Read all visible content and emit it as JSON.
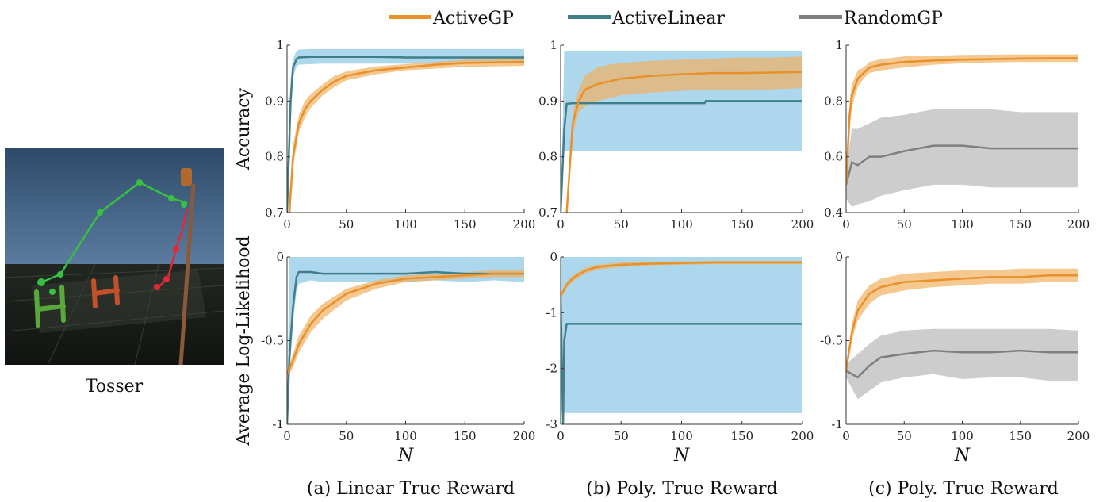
{
  "image_caption": "Tosser",
  "legend": {
    "items": [
      {
        "label": "ActiveGP",
        "color": "#e8912b"
      },
      {
        "label": "ActiveLinear",
        "color": "#3f7f8a"
      },
      {
        "label": "RandomGP",
        "color": "#7f7f7f"
      }
    ]
  },
  "colors": {
    "ActiveGP": "#e8912b",
    "ActiveLinear": "#3f7f8a",
    "RandomGP": "#7f7f7f",
    "ActiveGP_band": "#f0b060",
    "ActiveLinear_band": "#9fd0ea",
    "RandomGP_band": "#c4c4c4"
  },
  "chart_data": [
    {
      "id": "a-top",
      "type": "line",
      "xlabel": "",
      "ylabel": "Accuracy",
      "xlim": [
        0,
        200
      ],
      "ylim": [
        0.7,
        1
      ],
      "xticks": [
        "0",
        "50",
        "100",
        "150",
        "200"
      ],
      "yticks": [
        {
          "v": 0.7,
          "t": "0.7"
        },
        {
          "v": 0.8,
          "t": "0.8"
        },
        {
          "v": 0.9,
          "t": "0.9"
        },
        {
          "v": 1,
          "t": "1"
        }
      ],
      "series": [
        {
          "name": "ActiveLinear",
          "x": [
            0,
            3,
            5,
            8,
            10,
            20,
            30,
            50,
            75,
            100,
            125,
            150,
            175,
            200
          ],
          "y": [
            0.7,
            0.9,
            0.96,
            0.975,
            0.978,
            0.979,
            0.979,
            0.979,
            0.979,
            0.978,
            0.978,
            0.978,
            0.978,
            0.978
          ],
          "lo": [
            0.7,
            0.86,
            0.94,
            0.962,
            0.965,
            0.966,
            0.967,
            0.967,
            0.967,
            0.967,
            0.967,
            0.967,
            0.967,
            0.967
          ],
          "hi": [
            0.7,
            0.94,
            0.975,
            0.99,
            0.992,
            0.993,
            0.993,
            0.993,
            0.993,
            0.993,
            0.993,
            0.993,
            0.993,
            0.993
          ]
        },
        {
          "name": "ActiveGP",
          "x": [
            2,
            5,
            10,
            15,
            20,
            30,
            40,
            50,
            75,
            100,
            125,
            150,
            175,
            200
          ],
          "y": [
            0.7,
            0.8,
            0.86,
            0.885,
            0.9,
            0.92,
            0.935,
            0.945,
            0.955,
            0.96,
            0.965,
            0.968,
            0.969,
            0.97
          ],
          "lo": [
            0.7,
            0.78,
            0.845,
            0.87,
            0.888,
            0.91,
            0.925,
            0.937,
            0.948,
            0.955,
            0.958,
            0.961,
            0.962,
            0.963
          ],
          "hi": [
            0.7,
            0.82,
            0.875,
            0.9,
            0.912,
            0.93,
            0.945,
            0.953,
            0.962,
            0.966,
            0.97,
            0.974,
            0.976,
            0.977
          ]
        }
      ]
    },
    {
      "id": "b-top",
      "type": "line",
      "xlabel": "",
      "ylabel": "",
      "xlim": [
        0,
        200
      ],
      "ylim": [
        0.7,
        1
      ],
      "xticks": [
        "0",
        "50",
        "100",
        "150",
        "200"
      ],
      "yticks": [
        {
          "v": 0.7,
          "t": "0.7"
        },
        {
          "v": 0.8,
          "t": "0.8"
        },
        {
          "v": 0.9,
          "t": "0.9"
        },
        {
          "v": 1,
          "t": "1"
        }
      ],
      "series": [
        {
          "name": "ActiveLinear",
          "x": [
            0,
            3,
            5,
            10,
            20,
            50,
            100,
            119,
            120,
            150,
            200
          ],
          "y": [
            0.7,
            0.85,
            0.895,
            0.896,
            0.896,
            0.896,
            0.896,
            0.896,
            0.9,
            0.9,
            0.9
          ],
          "lo": [
            0.7,
            0.81,
            0.81,
            0.81,
            0.81,
            0.81,
            0.81,
            0.81,
            0.81,
            0.81,
            0.81
          ],
          "hi": [
            0.7,
            0.99,
            0.99,
            0.99,
            0.99,
            0.99,
            0.99,
            0.99,
            0.99,
            0.99,
            0.99
          ]
        },
        {
          "name": "ActiveGP",
          "x": [
            5,
            10,
            15,
            20,
            30,
            40,
            50,
            75,
            100,
            125,
            150,
            175,
            200
          ],
          "y": [
            0.7,
            0.86,
            0.9,
            0.92,
            0.93,
            0.935,
            0.94,
            0.945,
            0.948,
            0.95,
            0.95,
            0.951,
            0.952
          ],
          "lo": [
            0.7,
            0.84,
            0.88,
            0.89,
            0.9,
            0.905,
            0.91,
            0.915,
            0.918,
            0.92,
            0.92,
            0.921,
            0.923
          ],
          "hi": [
            0.7,
            0.88,
            0.92,
            0.945,
            0.96,
            0.965,
            0.968,
            0.972,
            0.974,
            0.976,
            0.978,
            0.978,
            0.98
          ]
        }
      ]
    },
    {
      "id": "c-top",
      "type": "line",
      "xlabel": "",
      "ylabel": "",
      "xlim": [
        0,
        200
      ],
      "ylim": [
        0.4,
        1
      ],
      "xticks": [
        "0",
        "50",
        "100",
        "150",
        "200"
      ],
      "yticks": [
        {
          "v": 0.4,
          "t": "0.4"
        },
        {
          "v": 0.6,
          "t": "0.6"
        },
        {
          "v": 0.8,
          "t": "0.8"
        },
        {
          "v": 1,
          "t": "1"
        }
      ],
      "series": [
        {
          "name": "RandomGP",
          "x": [
            0,
            5,
            10,
            20,
            30,
            50,
            75,
            100,
            125,
            150,
            175,
            200
          ],
          "y": [
            0.5,
            0.58,
            0.57,
            0.6,
            0.6,
            0.62,
            0.64,
            0.64,
            0.63,
            0.63,
            0.63,
            0.63
          ],
          "lo": [
            0.45,
            0.42,
            0.43,
            0.44,
            0.46,
            0.48,
            0.5,
            0.5,
            0.49,
            0.49,
            0.49,
            0.49
          ],
          "hi": [
            0.55,
            0.7,
            0.7,
            0.72,
            0.74,
            0.75,
            0.77,
            0.77,
            0.77,
            0.76,
            0.76,
            0.76
          ]
        },
        {
          "name": "ActiveGP",
          "x": [
            0,
            3,
            5,
            10,
            15,
            20,
            30,
            50,
            75,
            100,
            125,
            150,
            175,
            200
          ],
          "y": [
            0.5,
            0.75,
            0.82,
            0.88,
            0.9,
            0.92,
            0.93,
            0.94,
            0.945,
            0.948,
            0.95,
            0.952,
            0.953,
            0.953
          ],
          "lo": [
            0.5,
            0.7,
            0.78,
            0.85,
            0.88,
            0.9,
            0.91,
            0.92,
            0.93,
            0.935,
            0.938,
            0.94,
            0.94,
            0.94
          ],
          "hi": [
            0.5,
            0.8,
            0.86,
            0.91,
            0.92,
            0.94,
            0.95,
            0.96,
            0.962,
            0.965,
            0.966,
            0.967,
            0.967,
            0.967
          ]
        }
      ]
    },
    {
      "id": "a-bottom",
      "type": "line",
      "xlabel": "N",
      "ylabel": "Average Log-Likelihood",
      "xlim": [
        0,
        200
      ],
      "ylim": [
        -1,
        0
      ],
      "xticks": [
        "0",
        "50",
        "100",
        "150",
        "200"
      ],
      "yticks": [
        {
          "v": -1,
          "t": "-1"
        },
        {
          "v": -0.5,
          "t": "-0.5"
        },
        {
          "v": 0,
          "t": "0"
        }
      ],
      "series": [
        {
          "name": "ActiveLinear",
          "x": [
            0,
            2,
            5,
            8,
            10,
            20,
            30,
            50,
            75,
            100,
            125,
            150,
            175,
            200
          ],
          "y": [
            -1,
            -0.6,
            -0.3,
            -0.12,
            -0.09,
            -0.09,
            -0.1,
            -0.1,
            -0.1,
            -0.1,
            -0.09,
            -0.1,
            -0.1,
            -0.1
          ],
          "lo": [
            -1,
            -0.7,
            -0.4,
            -0.2,
            -0.16,
            -0.14,
            -0.15,
            -0.15,
            -0.15,
            -0.15,
            -0.14,
            -0.15,
            -0.14,
            -0.15
          ],
          "hi": [
            -1,
            0,
            0,
            0,
            0,
            0,
            0,
            0,
            0,
            0,
            0,
            0,
            0,
            0
          ]
        },
        {
          "name": "ActiveGP",
          "x": [
            0,
            5,
            10,
            20,
            30,
            50,
            75,
            100,
            125,
            150,
            175,
            200
          ],
          "y": [
            -0.7,
            -0.62,
            -0.52,
            -0.4,
            -0.32,
            -0.22,
            -0.16,
            -0.13,
            -0.12,
            -0.11,
            -0.1,
            -0.1
          ],
          "lo": [
            -0.72,
            -0.66,
            -0.57,
            -0.45,
            -0.37,
            -0.26,
            -0.19,
            -0.15,
            -0.14,
            -0.13,
            -0.12,
            -0.12
          ],
          "hi": [
            -0.68,
            -0.58,
            -0.47,
            -0.35,
            -0.28,
            -0.19,
            -0.14,
            -0.11,
            -0.1,
            -0.09,
            -0.08,
            -0.08
          ]
        }
      ]
    },
    {
      "id": "b-bottom",
      "type": "line",
      "xlabel": "N",
      "ylabel": "",
      "xlim": [
        0,
        200
      ],
      "ylim": [
        -3,
        0
      ],
      "xticks": [
        "0",
        "50",
        "100",
        "150",
        "200"
      ],
      "yticks": [
        {
          "v": -3,
          "t": "-3"
        },
        {
          "v": -2,
          "t": "-2"
        },
        {
          "v": -1,
          "t": "-1"
        },
        {
          "v": 0,
          "t": "0"
        }
      ],
      "series": [
        {
          "name": "ActiveLinear",
          "x": [
            0,
            2,
            3,
            5,
            10,
            50,
            100,
            150,
            200
          ],
          "y": [
            -0.7,
            -3,
            -1.5,
            -1.2,
            -1.2,
            -1.2,
            -1.2,
            -1.2,
            -1.2
          ],
          "lo": [
            -2.8,
            -2.8,
            -2.8,
            -2.8,
            -2.8,
            -2.8,
            -2.8,
            -2.8,
            -2.8
          ],
          "hi": [
            0,
            0,
            0,
            0,
            0,
            0,
            0,
            0,
            0
          ]
        },
        {
          "name": "ActiveGP",
          "x": [
            0,
            5,
            10,
            20,
            30,
            50,
            75,
            100,
            125,
            150,
            175,
            200
          ],
          "y": [
            -0.7,
            -0.5,
            -0.38,
            -0.25,
            -0.18,
            -0.14,
            -0.12,
            -0.11,
            -0.1,
            -0.1,
            -0.1,
            -0.1
          ],
          "lo": [
            -0.75,
            -0.56,
            -0.44,
            -0.3,
            -0.23,
            -0.18,
            -0.15,
            -0.14,
            -0.13,
            -0.13,
            -0.13,
            -0.13
          ],
          "hi": [
            -0.65,
            -0.45,
            -0.33,
            -0.2,
            -0.14,
            -0.1,
            -0.09,
            -0.08,
            -0.07,
            -0.07,
            -0.07,
            -0.07
          ]
        }
      ]
    },
    {
      "id": "c-bottom",
      "type": "line",
      "xlabel": "N",
      "ylabel": "",
      "xlim": [
        0,
        200
      ],
      "ylim": [
        -1,
        0
      ],
      "xticks": [
        "0",
        "50",
        "100",
        "150",
        "200"
      ],
      "yticks": [
        {
          "v": -1,
          "t": "-1"
        },
        {
          "v": -0.5,
          "t": "-0.5"
        },
        {
          "v": 0,
          "t": "0"
        }
      ],
      "series": [
        {
          "name": "RandomGP",
          "x": [
            0,
            10,
            20,
            30,
            50,
            75,
            100,
            125,
            150,
            175,
            200
          ],
          "y": [
            -0.68,
            -0.72,
            -0.65,
            -0.6,
            -0.58,
            -0.56,
            -0.57,
            -0.57,
            -0.56,
            -0.57,
            -0.57
          ],
          "lo": [
            -0.72,
            -0.85,
            -0.8,
            -0.75,
            -0.72,
            -0.7,
            -0.73,
            -0.72,
            -0.72,
            -0.74,
            -0.74
          ],
          "hi": [
            -0.64,
            -0.58,
            -0.52,
            -0.47,
            -0.44,
            -0.43,
            -0.43,
            -0.43,
            -0.43,
            -0.43,
            -0.44
          ]
        },
        {
          "name": "ActiveGP",
          "x": [
            0,
            5,
            10,
            20,
            30,
            50,
            75,
            100,
            125,
            150,
            175,
            200
          ],
          "y": [
            -0.68,
            -0.45,
            -0.32,
            -0.22,
            -0.18,
            -0.15,
            -0.14,
            -0.13,
            -0.12,
            -0.12,
            -0.11,
            -0.11
          ],
          "lo": [
            -0.7,
            -0.5,
            -0.38,
            -0.28,
            -0.23,
            -0.2,
            -0.18,
            -0.17,
            -0.16,
            -0.16,
            -0.15,
            -0.15
          ],
          "hi": [
            -0.66,
            -0.4,
            -0.26,
            -0.17,
            -0.13,
            -0.1,
            -0.09,
            -0.08,
            -0.08,
            -0.07,
            -0.07,
            -0.07
          ]
        }
      ]
    }
  ],
  "subplot_captions": [
    "(a) Linear True Reward",
    "(b) Poly. True Reward",
    "(c) Poly. True Reward"
  ]
}
